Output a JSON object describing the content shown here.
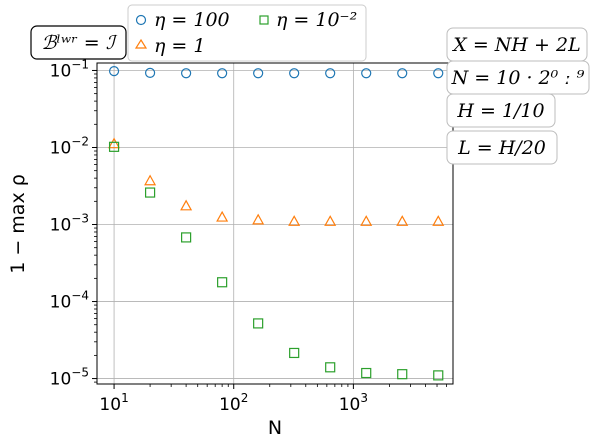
{
  "chart_data": {
    "type": "scatter",
    "xlabel": "N",
    "ylabel": "1 − max ρ",
    "xscale": "log",
    "yscale": "log",
    "xlim": [
      7.2,
      6800
    ],
    "ylim": [
      8.5e-06,
      0.125
    ],
    "grid": true,
    "legend_placement": "top",
    "x": [
      10,
      20,
      40,
      80,
      160,
      320,
      640,
      1280,
      2560,
      5120
    ],
    "series": [
      {
        "name": "η = 100",
        "marker": "circle",
        "color": "#1f77b4",
        "values": [
          0.098,
          0.093,
          0.092,
          0.092,
          0.092,
          0.092,
          0.092,
          0.092,
          0.092,
          0.092
        ]
      },
      {
        "name": "η = 1",
        "marker": "triangle",
        "color": "#ff7f0e",
        "values": [
          0.0112,
          0.0037,
          0.00175,
          0.00125,
          0.00115,
          0.0011,
          0.0011,
          0.0011,
          0.0011,
          0.0011
        ]
      },
      {
        "name": "η = 10⁻²",
        "marker": "square",
        "color": "#2ca02c",
        "values": [
          0.0102,
          0.0026,
          0.00068,
          0.000178,
          5.2e-05,
          2.15e-05,
          1.4e-05,
          1.18e-05,
          1.14e-05,
          1.1e-05
        ]
      }
    ],
    "x_ticks": [
      {
        "value": 10,
        "base": "10",
        "exp": "1"
      },
      {
        "value": 100,
        "base": "10",
        "exp": "2"
      },
      {
        "value": 1000,
        "base": "10",
        "exp": "3"
      }
    ],
    "y_ticks": [
      {
        "value": 0.1,
        "base": "10",
        "exp": "−1"
      },
      {
        "value": 0.01,
        "base": "10",
        "exp": "−2"
      },
      {
        "value": 0.001,
        "base": "10",
        "exp": "−3"
      },
      {
        "value": 0.0001,
        "base": "10",
        "exp": "−4"
      },
      {
        "value": 1e-05,
        "base": "10",
        "exp": "−5"
      }
    ],
    "annotations": {
      "top_left": "ℬˡʷʳ = ℐ",
      "right": [
        "X = NH + 2L",
        "N = 10 · 2⁰ ː ⁹",
        "H = 1/10",
        "L = H/20"
      ]
    }
  },
  "colors": {
    "grid": "#b0b0b0",
    "axis": "#000000",
    "legend_border": "#cccccc"
  }
}
